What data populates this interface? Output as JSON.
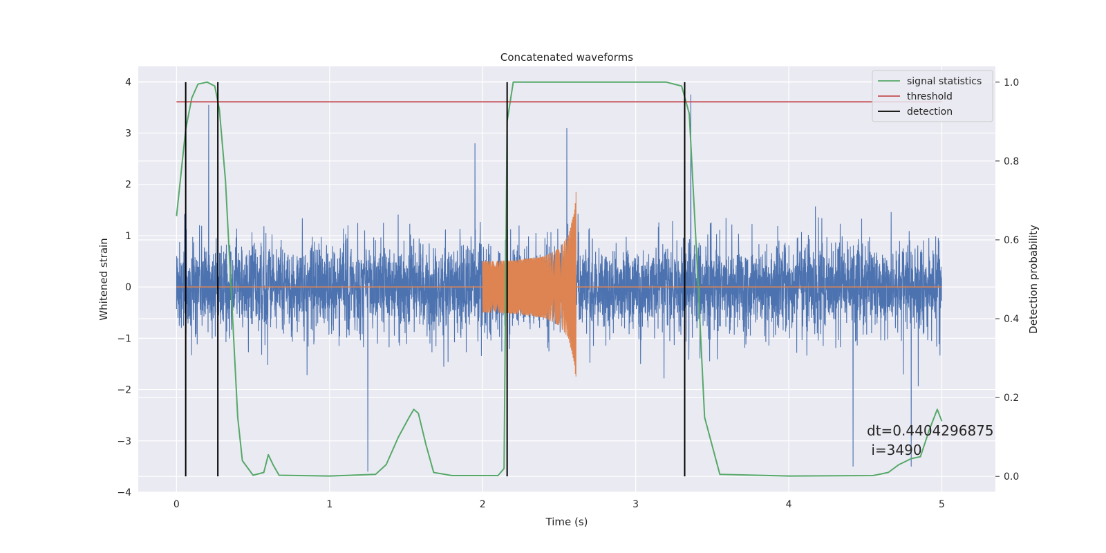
{
  "chart_data": {
    "type": "line",
    "title": "Concatenated waveforms",
    "xlabel": "Time (s)",
    "ylabel": "Whitened strain",
    "y2label": "Detection probability",
    "xlim": [
      -0.25,
      5.35
    ],
    "ylim": [
      -4.0,
      4.3
    ],
    "y2lim": [
      -0.04,
      1.04
    ],
    "x_ticks": [
      0,
      1,
      2,
      3,
      4,
      5
    ],
    "y_ticks": [
      -4,
      -3,
      -2,
      -1,
      0,
      1,
      2,
      3,
      4
    ],
    "y2_ticks": [
      0.0,
      0.2,
      0.4,
      0.6,
      0.8,
      1.0
    ],
    "grid": true,
    "legend_position": "top-right",
    "colors": {
      "strain": "#4c72b0",
      "waveform": "#dd8452",
      "signal_statistics": "#55a868",
      "threshold": "#c44e52",
      "detection": "#000000",
      "background": "#eaeaf2"
    },
    "series": [
      {
        "name": "",
        "role": "whitened strain noise",
        "x_range": [
          0,
          5
        ],
        "typical_amplitude": 1.7,
        "peak_values": [
          {
            "x": 0.21,
            "y": 3.55
          },
          {
            "x": 1.95,
            "y": 2.8
          },
          {
            "x": 2.55,
            "y": 3.1
          },
          {
            "x": 3.36,
            "y": 3.75
          },
          {
            "x": 1.25,
            "y": -3.6
          },
          {
            "x": 4.42,
            "y": -3.5
          },
          {
            "x": 4.8,
            "y": -3.5
          }
        ]
      },
      {
        "name": "",
        "role": "injected waveform",
        "x": [
          2.0,
          2.2,
          2.4,
          2.5,
          2.56,
          2.6,
          2.61
        ],
        "envelope": [
          0.5,
          0.52,
          0.6,
          0.75,
          1.0,
          1.5,
          1.85
        ]
      },
      {
        "name": "signal statistics",
        "axis": "right",
        "x": [
          0.0,
          0.03,
          0.06,
          0.1,
          0.14,
          0.2,
          0.25,
          0.28,
          0.32,
          0.36,
          0.4,
          0.43,
          0.5,
          0.57,
          0.6,
          0.63,
          0.67,
          0.8,
          1.0,
          1.3,
          1.37,
          1.45,
          1.52,
          1.55,
          1.58,
          1.63,
          1.68,
          1.8,
          2.1,
          2.14,
          2.16,
          2.2,
          2.5,
          3.2,
          3.3,
          3.35,
          3.4,
          3.45,
          3.55,
          4.0,
          4.55,
          4.65,
          4.72,
          4.8,
          4.86,
          4.92,
          4.97,
          5.0
        ],
        "y": [
          0.66,
          0.77,
          0.88,
          0.96,
          0.995,
          1.0,
          0.99,
          0.93,
          0.75,
          0.45,
          0.15,
          0.04,
          0.003,
          0.01,
          0.055,
          0.03,
          0.003,
          0.002,
          0.001,
          0.005,
          0.03,
          0.1,
          0.15,
          0.17,
          0.16,
          0.08,
          0.01,
          0.002,
          0.002,
          0.02,
          0.9,
          1.0,
          1.0,
          1.0,
          0.99,
          0.92,
          0.55,
          0.15,
          0.005,
          0.001,
          0.002,
          0.01,
          0.03,
          0.045,
          0.05,
          0.12,
          0.17,
          0.14
        ]
      },
      {
        "name": "threshold",
        "axis": "right",
        "x": [
          0,
          5
        ],
        "y": [
          0.95,
          0.95
        ]
      },
      {
        "name": "detection",
        "axis": "right",
        "lines_x": [
          0.06,
          0.27,
          2.16,
          3.32
        ],
        "y_range": [
          0.0,
          1.0
        ]
      }
    ],
    "legend": [
      "signal statistics",
      "threshold",
      "detection"
    ],
    "annotations": [
      "dt=0.4404296875",
      " i=3490"
    ]
  }
}
